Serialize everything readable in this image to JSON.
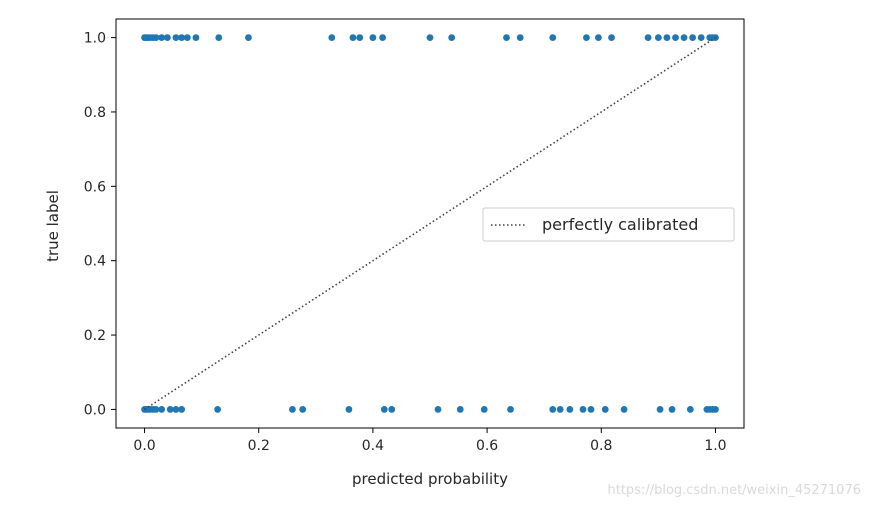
{
  "chart_data": {
    "type": "scatter",
    "xlabel": "predicted probability",
    "ylabel": "true label",
    "xlim": [
      -0.05,
      1.05
    ],
    "ylim": [
      -0.05,
      1.05
    ],
    "xticks": [
      0.0,
      0.2,
      0.4,
      0.6,
      0.8,
      1.0
    ],
    "xtick_labels": [
      "0.0",
      "0.2",
      "0.4",
      "0.6",
      "0.8",
      "1.0"
    ],
    "yticks": [
      0.0,
      0.2,
      0.4,
      0.6,
      0.8,
      1.0
    ],
    "ytick_labels": [
      "0.0",
      "0.2",
      "0.4",
      "0.6",
      "0.8",
      "1.0"
    ],
    "grid": false,
    "legend_position": "center-right",
    "series": [
      {
        "kind": "points",
        "color": "#1f77b4",
        "x": [
          0.0,
          0.003,
          0.006,
          0.01,
          0.015,
          0.02,
          0.03,
          0.04,
          0.055,
          0.065,
          0.075,
          0.09,
          0.13,
          0.182,
          0.328,
          0.365,
          0.377,
          0.4,
          0.417,
          0.5,
          0.538,
          0.634,
          0.658,
          0.715,
          0.774,
          0.795,
          0.818,
          0.882,
          0.9,
          0.915,
          0.93,
          0.945,
          0.96,
          0.975,
          0.99,
          0.995,
          1.0,
          0.0,
          0.003,
          0.006,
          0.01,
          0.015,
          0.02,
          0.03,
          0.045,
          0.055,
          0.065,
          0.128,
          0.259,
          0.277,
          0.358,
          0.42,
          0.433,
          0.514,
          0.553,
          0.595,
          0.641,
          0.715,
          0.728,
          0.745,
          0.768,
          0.782,
          0.807,
          0.84,
          0.903,
          0.924,
          0.956,
          0.985,
          0.99,
          0.995,
          1.0
        ],
        "y": [
          1,
          1,
          1,
          1,
          1,
          1,
          1,
          1,
          1,
          1,
          1,
          1,
          1,
          1,
          1,
          1,
          1,
          1,
          1,
          1,
          1,
          1,
          1,
          1,
          1,
          1,
          1,
          1,
          1,
          1,
          1,
          1,
          1,
          1,
          1,
          1,
          1,
          0,
          0,
          0,
          0,
          0,
          0,
          0,
          0,
          0,
          0,
          0,
          0,
          0,
          0,
          0,
          0,
          0,
          0,
          0,
          0,
          0,
          0,
          0,
          0,
          0,
          0,
          0,
          0,
          0,
          0,
          0,
          0,
          0,
          0
        ]
      },
      {
        "kind": "line",
        "name": "perfectly calibrated",
        "color": "#404040",
        "style": "dotted",
        "x": [
          0,
          1
        ],
        "y": [
          0,
          1
        ]
      }
    ]
  },
  "watermark": "https://blog.csdn.net/weixin_45271076"
}
